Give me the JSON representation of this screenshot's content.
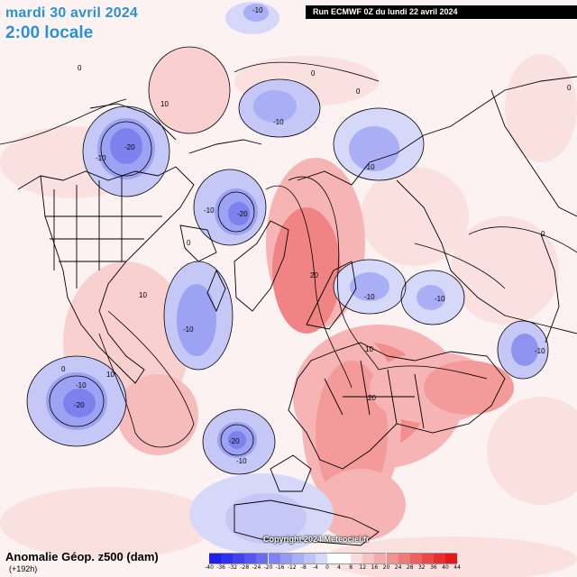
{
  "header": {
    "date": "mardi 30 avril 2024",
    "time": "2:00 locale",
    "run": "Run ECMWF 0Z du lundi 22 avril 2024"
  },
  "footer": {
    "title": "Anomalie Géop. z500 (dam)",
    "lead": "(+192h)",
    "copyright": "Copyright 2024 Meteociel.fr"
  },
  "colors": {
    "negative_strong": "#1d1dfc",
    "negative_mid": "#8f93ef",
    "negative_light": "#d8dcf8",
    "positive_light": "#f9d4d4",
    "positive_mid": "#f28a8a",
    "positive_strong": "#e81c1c"
  },
  "legend": {
    "ticks": [
      "-40",
      "-36",
      "-32",
      "-28",
      "-24",
      "-20",
      "-16",
      "-12",
      "-8",
      "-4",
      "0",
      "4",
      "8",
      "12",
      "16",
      "20",
      "24",
      "28",
      "32",
      "36",
      "40",
      "44"
    ],
    "colors": [
      "#1f1fe8",
      "#2f2fee",
      "#4141f0",
      "#5555f0",
      "#6a6cf0",
      "#7f83f1",
      "#9599f2",
      "#aaaef4",
      "#c0c3f6",
      "#d6d8f9",
      "#ffffff",
      "#ffffff",
      "#fadcdc",
      "#f7c4c4",
      "#f4abab",
      "#f19292",
      "#ee7a7a",
      "#eb6161",
      "#e84848",
      "#e53030",
      "#e21818"
    ]
  },
  "contour_labels": [
    {
      "text": "-10",
      "lon_desc": "N Pacific"
    },
    {
      "text": "0"
    },
    {
      "text": "10"
    },
    {
      "text": "-20"
    },
    {
      "text": "20"
    }
  ]
}
